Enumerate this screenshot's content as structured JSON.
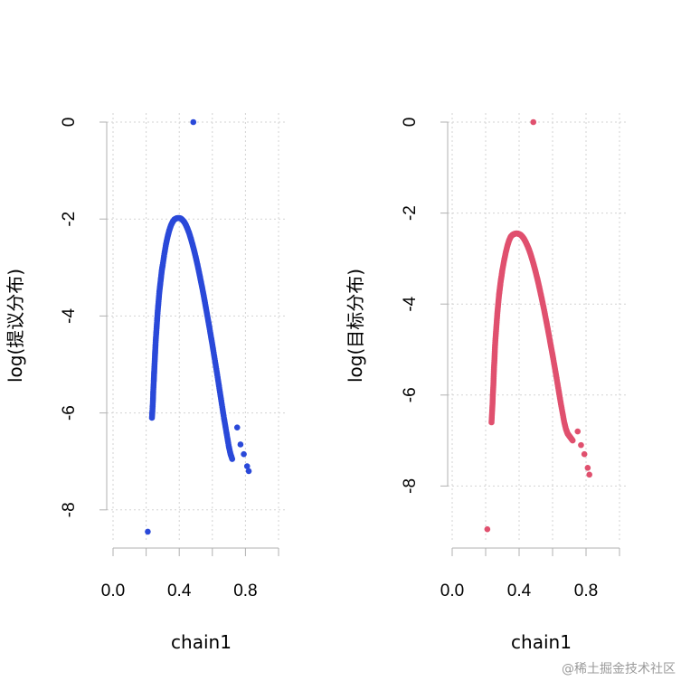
{
  "watermark": "@稀土掘金技术社区",
  "chart_data": [
    {
      "type": "scatter",
      "xlabel": "chain1",
      "ylabel": "log(提议分布)",
      "xlim": [
        0,
        1
      ],
      "ylim": [
        -8.6,
        0.1
      ],
      "x_ticks": [
        0.0,
        0.4,
        0.8
      ],
      "x_tick_labels": [
        "0.0",
        "0.4",
        "0.8"
      ],
      "y_ticks": [
        0,
        -2,
        -4,
        -6,
        -8
      ],
      "y_tick_labels": [
        "0",
        "-2",
        "-4",
        "-6",
        "-8"
      ],
      "grid": true,
      "color": "#2a49d9",
      "peak": {
        "x": 0.4,
        "y": -1.98
      },
      "series": [
        {
          "x": [
            0.485,
            0.21,
            0.235,
            0.238,
            0.241,
            0.243,
            0.246,
            0.248,
            0.25,
            0.253,
            0.255,
            0.258,
            0.262,
            0.266,
            0.27,
            0.275,
            0.28,
            0.285,
            0.29,
            0.295,
            0.3,
            0.31,
            0.32,
            0.33,
            0.34,
            0.35,
            0.36,
            0.37,
            0.38,
            0.39,
            0.4,
            0.41,
            0.42,
            0.43,
            0.44,
            0.45,
            0.46,
            0.47,
            0.48,
            0.49,
            0.5,
            0.51,
            0.52,
            0.53,
            0.54,
            0.55,
            0.56,
            0.57,
            0.58,
            0.59,
            0.6,
            0.61,
            0.62,
            0.63,
            0.64,
            0.65,
            0.66,
            0.67,
            0.68,
            0.69,
            0.7,
            0.71,
            0.72,
            0.75,
            0.77,
            0.79,
            0.81,
            0.82
          ],
          "y": [
            0.0,
            -8.45,
            -6.1,
            -5.95,
            -5.75,
            -5.55,
            -5.35,
            -5.2,
            -5.05,
            -4.85,
            -4.7,
            -4.5,
            -4.3,
            -4.1,
            -3.9,
            -3.7,
            -3.5,
            -3.35,
            -3.2,
            -3.05,
            -2.95,
            -2.72,
            -2.52,
            -2.36,
            -2.23,
            -2.13,
            -2.06,
            -2.01,
            -1.99,
            -1.98,
            -1.98,
            -1.99,
            -2.02,
            -2.06,
            -2.12,
            -2.2,
            -2.29,
            -2.4,
            -2.52,
            -2.65,
            -2.79,
            -2.94,
            -3.1,
            -3.27,
            -3.44,
            -3.62,
            -3.81,
            -4.0,
            -4.19,
            -4.39,
            -4.59,
            -4.8,
            -5.01,
            -5.22,
            -5.44,
            -5.66,
            -5.88,
            -6.1,
            -6.3,
            -6.5,
            -6.7,
            -6.85,
            -6.95,
            -6.3,
            -6.65,
            -6.85,
            -7.1,
            -7.2
          ]
        }
      ]
    },
    {
      "type": "scatter",
      "xlabel": "chain1",
      "ylabel": "log(目标分布)",
      "xlim": [
        0,
        1
      ],
      "ylim": [
        -9.0,
        0.1
      ],
      "x_ticks": [
        0.0,
        0.4,
        0.8
      ],
      "x_tick_labels": [
        "0.0",
        "0.4",
        "0.8"
      ],
      "y_ticks": [
        0,
        -2,
        -4,
        -6,
        -8
      ],
      "y_tick_labels": [
        "0",
        "-2",
        "-4",
        "-6",
        "-8"
      ],
      "grid": true,
      "color": "#e0506e",
      "peak": {
        "x": 0.4,
        "y": -2.45
      },
      "series": [
        {
          "x": [
            0.485,
            0.21,
            0.235,
            0.238,
            0.241,
            0.243,
            0.246,
            0.248,
            0.25,
            0.253,
            0.255,
            0.258,
            0.262,
            0.266,
            0.27,
            0.275,
            0.28,
            0.285,
            0.29,
            0.295,
            0.3,
            0.31,
            0.32,
            0.33,
            0.34,
            0.35,
            0.36,
            0.37,
            0.38,
            0.39,
            0.4,
            0.41,
            0.42,
            0.43,
            0.44,
            0.45,
            0.46,
            0.47,
            0.48,
            0.49,
            0.5,
            0.51,
            0.52,
            0.53,
            0.54,
            0.55,
            0.56,
            0.57,
            0.58,
            0.59,
            0.6,
            0.61,
            0.62,
            0.63,
            0.64,
            0.65,
            0.66,
            0.67,
            0.68,
            0.69,
            0.7,
            0.71,
            0.72,
            0.75,
            0.77,
            0.79,
            0.81,
            0.82
          ],
          "y": [
            0.0,
            -8.95,
            -6.6,
            -6.4,
            -6.2,
            -6.0,
            -5.8,
            -5.6,
            -5.4,
            -5.2,
            -5.0,
            -4.8,
            -4.6,
            -4.4,
            -4.2,
            -4.0,
            -3.8,
            -3.65,
            -3.5,
            -3.38,
            -3.25,
            -3.05,
            -2.87,
            -2.72,
            -2.6,
            -2.52,
            -2.48,
            -2.46,
            -2.45,
            -2.45,
            -2.46,
            -2.48,
            -2.52,
            -2.57,
            -2.64,
            -2.72,
            -2.81,
            -2.92,
            -3.04,
            -3.17,
            -3.31,
            -3.46,
            -3.62,
            -3.79,
            -3.96,
            -4.14,
            -4.33,
            -4.52,
            -4.72,
            -4.92,
            -5.12,
            -5.33,
            -5.54,
            -5.76,
            -5.98,
            -6.2,
            -6.4,
            -6.6,
            -6.75,
            -6.85,
            -6.9,
            -6.95,
            -7.0,
            -6.8,
            -7.1,
            -7.3,
            -7.6,
            -7.75
          ]
        }
      ]
    }
  ]
}
